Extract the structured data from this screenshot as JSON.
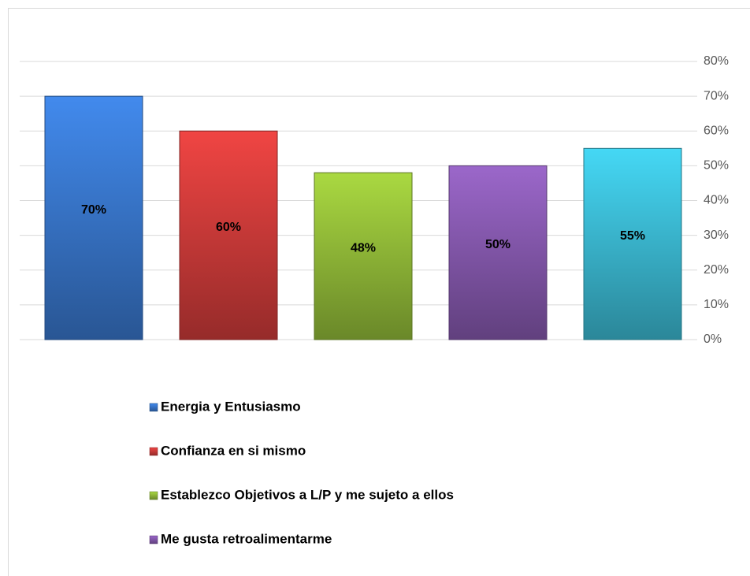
{
  "chart_data": {
    "type": "bar",
    "series": [
      {
        "name": "Energia  y Entusiasmo",
        "color": "#3b7bd4",
        "values": [
          70
        ],
        "value_labels": [
          "70%"
        ]
      },
      {
        "name": "Confianza en si mismo",
        "color": "#d63e3c",
        "values": [
          60
        ],
        "value_labels": [
          "60%"
        ]
      },
      {
        "name": "Establezco Objetivos a L/P y me sujeto a ellos",
        "color": "#98c23a",
        "values": [
          48
        ],
        "value_labels": [
          "48%"
        ]
      },
      {
        "name": "Me gusta retroalimentarme",
        "color": "#8a5cb4",
        "values": [
          50
        ],
        "value_labels": [
          "50%"
        ]
      },
      {
        "name": null,
        "color": "#3ec1db",
        "values": [
          55
        ],
        "value_labels": [
          "55%"
        ]
      }
    ],
    "ylim": [
      0,
      80
    ],
    "yticks": [
      {
        "value": 0,
        "label": "0%"
      },
      {
        "value": 10,
        "label": "10%"
      },
      {
        "value": 20,
        "label": "20%"
      },
      {
        "value": 30,
        "label": "30%"
      },
      {
        "value": 40,
        "label": "40%"
      },
      {
        "value": 50,
        "label": "50%"
      },
      {
        "value": 60,
        "label": "60%"
      },
      {
        "value": 70,
        "label": "70%"
      },
      {
        "value": 80,
        "label": "80%"
      }
    ],
    "grid": true
  }
}
